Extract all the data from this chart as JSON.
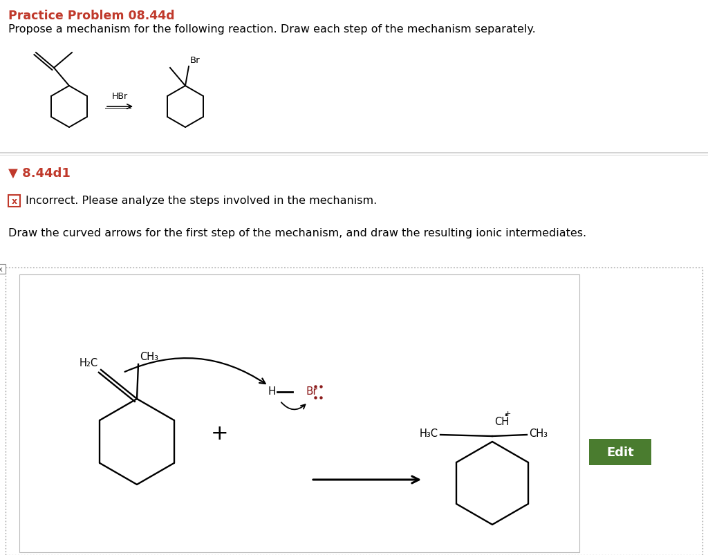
{
  "title": "Practice Problem 08.44d",
  "title_color": "#c0392b",
  "subtitle": "Propose a mechanism for the following reaction. Draw each step of the mechanism separately.",
  "subtitle_color": "#000000",
  "section_label": "▼ 8.44d1",
  "section_color": "#c0392b",
  "incorrect_text": "Incorrect. Please analyze the steps involved in the mechanism.",
  "curved_arrows_text": "Draw the curved arrows for the first step of the mechanism, and draw the resulting ionic intermediates.",
  "bg_color": "#ffffff",
  "edit_button_color": "#4a7c2f",
  "edit_button_text_color": "#ffffff",
  "separator_color": "#cccccc",
  "dotted_border_color": "#999999",
  "inner_box_border": "#bbbbbb",
  "hbr_color": "#8b1a1a"
}
